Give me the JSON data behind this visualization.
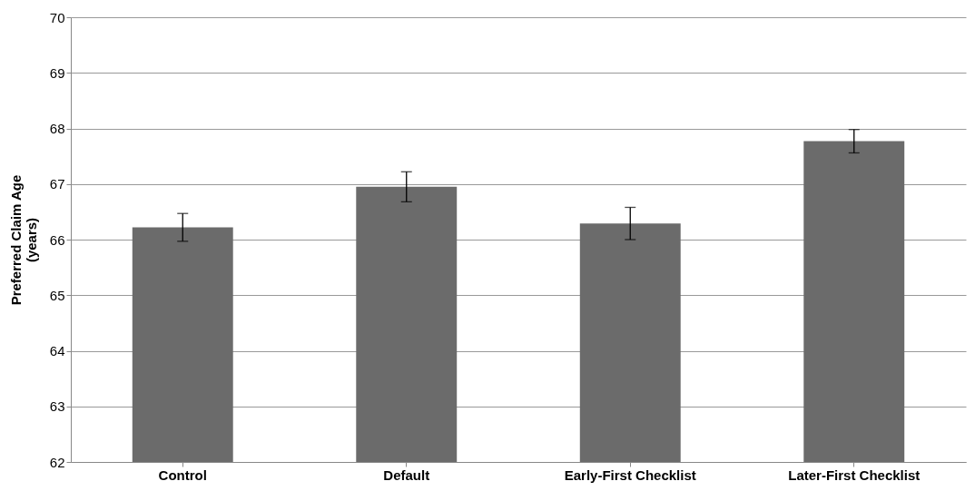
{
  "chart_data": {
    "type": "bar",
    "ylabel": "Preferred Claim Age (years)",
    "categories": [
      "Control",
      "Default",
      "Early-First Checklist",
      "Later-First Checklist"
    ],
    "values": [
      66.22,
      66.95,
      66.29,
      67.77
    ],
    "errors": [
      0.25,
      0.27,
      0.29,
      0.21
    ],
    "color": "#6b6b6b",
    "ylim": [
      62,
      70
    ],
    "yticks": [
      62,
      63,
      64,
      65,
      66,
      67,
      68,
      69,
      70
    ],
    "grid": "y"
  }
}
